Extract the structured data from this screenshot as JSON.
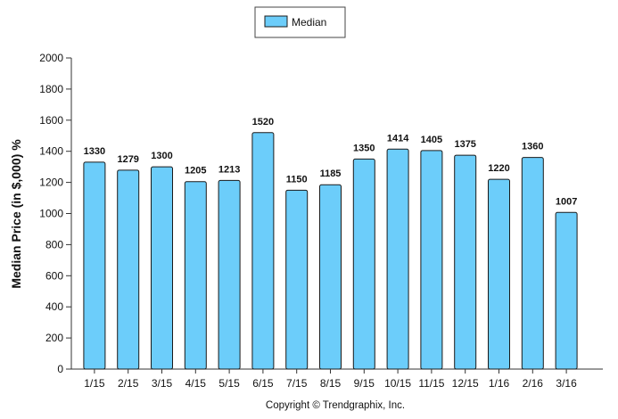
{
  "chart_data": {
    "type": "bar",
    "categories": [
      "1/15",
      "2/15",
      "3/15",
      "4/15",
      "5/15",
      "6/15",
      "7/15",
      "8/15",
      "9/15",
      "10/15",
      "11/15",
      "12/15",
      "1/16",
      "2/16",
      "3/16"
    ],
    "series": [
      {
        "name": "Median",
        "values": [
          1330,
          1279,
          1300,
          1205,
          1213,
          1520,
          1150,
          1185,
          1350,
          1414,
          1405,
          1375,
          1220,
          1360,
          1007
        ],
        "color": "#6ccdfa"
      }
    ],
    "ylabel": "Median Price (in $,000) %",
    "xlabel": "",
    "ylim": [
      0,
      2000
    ],
    "yticks": [
      0,
      200,
      400,
      600,
      800,
      1000,
      1200,
      1400,
      1600,
      1800,
      2000
    ],
    "legend": "top-center",
    "grid": false
  },
  "footer": {
    "copyright": "Copyright © Trendgraphix, Inc."
  },
  "colors": {
    "bar_fill": "#6ccdfa",
    "bar_stroke": "#1a1a1a",
    "axis": "#333333"
  }
}
